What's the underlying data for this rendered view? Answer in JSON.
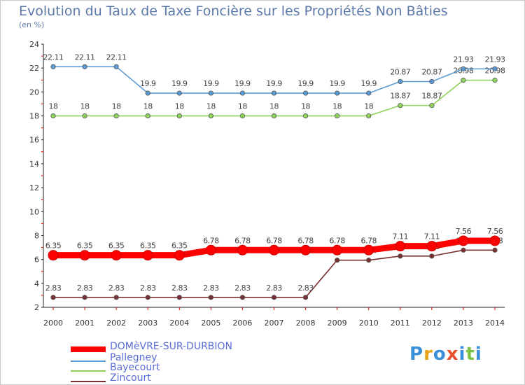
{
  "title": "Evolution du Taux de Taxe Foncière sur les Propriétés Non Bâties",
  "unit_label": "(en %)",
  "logo": {
    "text": "Proxiti",
    "colors": [
      "#3a8fd6",
      "#e8a317",
      "#3a8fd6",
      "#e84e2b",
      "#3a8fd6",
      "#7cc142",
      "#3a8fd6"
    ]
  },
  "chart_data": {
    "type": "line",
    "x": [
      "2000",
      "2001",
      "2002",
      "2003",
      "2004",
      "2005",
      "2006",
      "2007",
      "2008",
      "2009",
      "2010",
      "2011",
      "2012",
      "2013",
      "2014"
    ],
    "ylim": [
      2,
      24
    ],
    "yticks": [
      2,
      4,
      6,
      8,
      10,
      12,
      14,
      16,
      18,
      20,
      22,
      24
    ],
    "grid": false,
    "legend_position": "bottom-left",
    "series": [
      {
        "name": "DOMèVRE-SUR-DURBION",
        "color": "#ff0000",
        "values": [
          6.35,
          6.35,
          6.35,
          6.35,
          6.35,
          6.78,
          6.78,
          6.78,
          6.78,
          6.78,
          6.78,
          7.11,
          7.11,
          7.56,
          7.56
        ],
        "labels": [
          "6.35",
          "6.35",
          "6.35",
          "6.35",
          "6.35",
          "6.78",
          "6.78",
          "6.78",
          "6.78",
          "6.78",
          "6.78",
          "7.11",
          "7.11",
          "7.56",
          "7.56"
        ]
      },
      {
        "name": "Pallegney",
        "color": "#5b9bd5",
        "values": [
          22.11,
          22.11,
          22.11,
          19.9,
          19.9,
          19.9,
          19.9,
          19.9,
          19.9,
          19.9,
          19.9,
          20.87,
          20.87,
          21.93,
          21.93
        ],
        "labels": [
          "22.11",
          "22.11",
          "22.11",
          "19.9",
          "19.9",
          "19.9",
          "19.9",
          "19.9",
          "19.9",
          "19.9",
          "19.9",
          "20.87",
          "20.87",
          "21.93",
          "21.93"
        ]
      },
      {
        "name": "Bayecourt",
        "color": "#8ed35a",
        "values": [
          18,
          18,
          18,
          18,
          18,
          18,
          18,
          18,
          18,
          18,
          18,
          18.87,
          18.87,
          20.98,
          20.98
        ],
        "labels": [
          "18",
          "18",
          "18",
          "18",
          "18",
          "18",
          "18",
          "18",
          "18",
          "18",
          "18",
          "18.87",
          "18.87",
          "20.98",
          "20.98"
        ]
      },
      {
        "name": "Zincourt",
        "color": "#7a3030",
        "values": [
          2.83,
          2.83,
          2.83,
          2.83,
          2.83,
          2.83,
          2.83,
          2.83,
          2.83,
          5.94,
          5.94,
          6.28,
          6.28,
          6.78,
          6.78
        ],
        "labels": [
          "2.83",
          "2.83",
          "2.83",
          "2.83",
          "2.83",
          "2.83",
          "2.83",
          "2.83",
          "2.83",
          "5.94",
          "5.94",
          "6.28",
          "6.28",
          "6.78",
          "6.78"
        ]
      }
    ]
  }
}
